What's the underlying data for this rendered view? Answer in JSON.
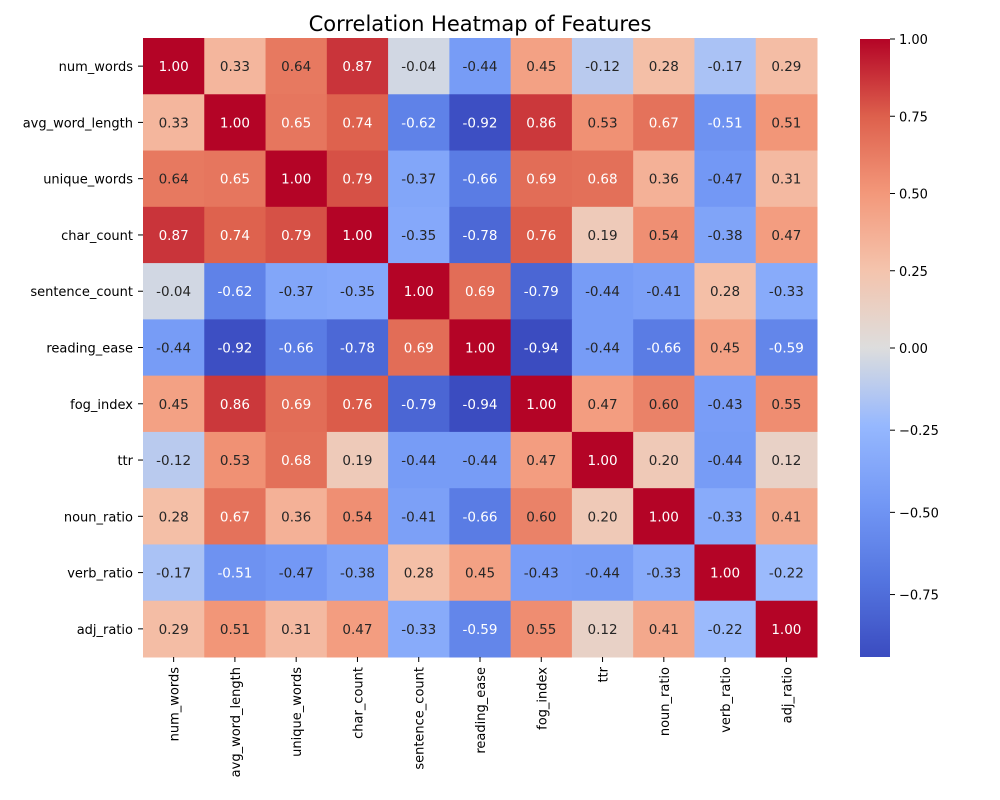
{
  "chart_data": {
    "type": "heatmap",
    "title": "Correlation Heatmap of Features",
    "xlabel": "",
    "ylabel": "",
    "colormap": "coolwarm",
    "vmin": -0.94,
    "vmax": 1.0,
    "x_labels": [
      "num_words",
      "avg_word_length",
      "unique_words",
      "char_count",
      "sentence_count",
      "reading_ease",
      "fog_index",
      "ttr",
      "noun_ratio",
      "verb_ratio",
      "adj_ratio"
    ],
    "y_labels": [
      "num_words",
      "avg_word_length",
      "unique_words",
      "char_count",
      "sentence_count",
      "reading_ease",
      "fog_index",
      "ttr",
      "noun_ratio",
      "verb_ratio",
      "adj_ratio"
    ],
    "values": [
      [
        1.0,
        0.33,
        0.64,
        0.87,
        -0.04,
        -0.44,
        0.45,
        -0.12,
        0.28,
        -0.17,
        0.29
      ],
      [
        0.33,
        1.0,
        0.65,
        0.74,
        -0.62,
        -0.92,
        0.86,
        0.53,
        0.67,
        -0.51,
        0.51
      ],
      [
        0.64,
        0.65,
        1.0,
        0.79,
        -0.37,
        -0.66,
        0.69,
        0.68,
        0.36,
        -0.47,
        0.31
      ],
      [
        0.87,
        0.74,
        0.79,
        1.0,
        -0.35,
        -0.78,
        0.76,
        0.19,
        0.54,
        -0.38,
        0.47
      ],
      [
        -0.04,
        -0.62,
        -0.37,
        -0.35,
        1.0,
        0.69,
        -0.79,
        -0.44,
        -0.41,
        0.28,
        -0.33
      ],
      [
        -0.44,
        -0.92,
        -0.66,
        -0.78,
        0.69,
        1.0,
        -0.94,
        -0.44,
        -0.66,
        0.45,
        -0.59
      ],
      [
        0.45,
        0.86,
        0.69,
        0.76,
        -0.79,
        -0.94,
        1.0,
        0.47,
        0.6,
        -0.43,
        0.55
      ],
      [
        -0.12,
        0.53,
        0.68,
        0.19,
        -0.44,
        -0.44,
        0.47,
        1.0,
        0.2,
        -0.44,
        0.12
      ],
      [
        0.28,
        0.67,
        0.36,
        0.54,
        -0.41,
        -0.66,
        0.6,
        0.2,
        1.0,
        -0.33,
        0.41
      ],
      [
        -0.17,
        -0.51,
        -0.47,
        -0.38,
        0.28,
        0.45,
        -0.43,
        -0.44,
        -0.33,
        1.0,
        -0.22
      ],
      [
        0.29,
        0.51,
        0.31,
        0.47,
        -0.33,
        -0.59,
        0.55,
        0.12,
        0.41,
        -0.22,
        1.0
      ]
    ],
    "value_format": "0.00",
    "colorbar": {
      "ticks": [
        1.0,
        0.75,
        0.5,
        0.25,
        0.0,
        -0.25,
        -0.5,
        -0.75
      ],
      "tick_labels": [
        "1.00",
        "0.75",
        "0.50",
        "0.25",
        "0.00",
        "−0.25",
        "−0.50",
        "−0.75"
      ]
    },
    "grid": false,
    "legend": "colorbar-right"
  }
}
